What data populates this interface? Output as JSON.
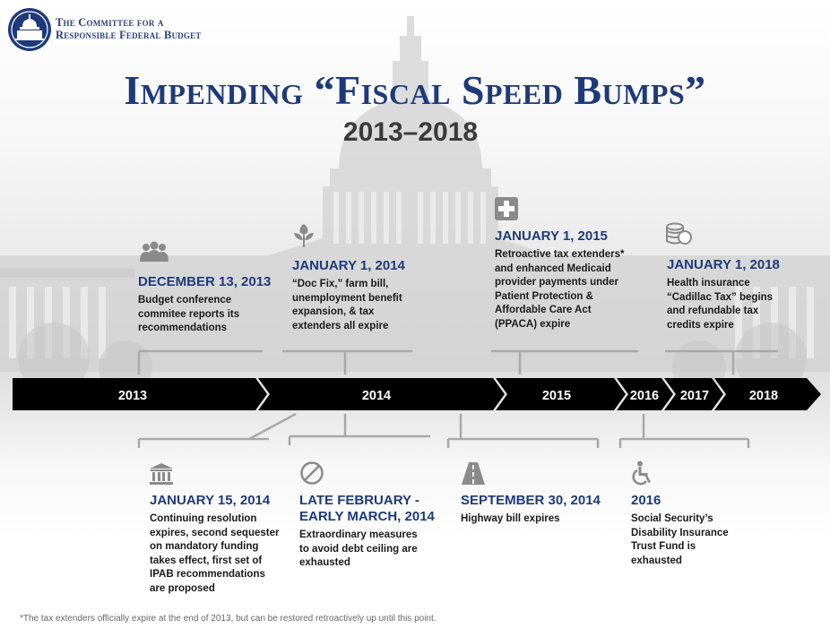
{
  "header": {
    "org_line1": "The Committee for a",
    "org_line2": "Responsible Federal Budget",
    "title": "Impending “Fiscal Speed Bumps”",
    "subtitle": "2013–2018"
  },
  "timeline": {
    "years": [
      {
        "label": "2013"
      },
      {
        "label": "2014"
      },
      {
        "label": "2015"
      },
      {
        "label": "2016"
      },
      {
        "label": "2017"
      },
      {
        "label": "2018"
      }
    ]
  },
  "events_top": [
    {
      "icon": "people-group-icon",
      "date": "DECEMBER 13, 2013",
      "text": [
        "Budget conference",
        "commitee reports its",
        "recommendations"
      ]
    },
    {
      "icon": "plant-icon",
      "date": "JANUARY 1, 2014",
      "text": [
        "“Doc Fix,” farm bill,",
        "unemployment benefit",
        "expansion, & tax",
        "extenders all expire"
      ]
    },
    {
      "icon": "medical-cross-icon",
      "date": "JANUARY 1, 2015",
      "text": [
        "Retroactive tax extenders*",
        "and enhanced Medicaid",
        "provider payments under",
        "Patient Protection &",
        "Affordable Care Act",
        "(PPACA) expire"
      ]
    },
    {
      "icon": "coins-icon",
      "date": "JANUARY 1, 2018",
      "text": [
        "Health insurance",
        "“Cadillac Tax” begins",
        "and refundable tax",
        "credits expire"
      ]
    }
  ],
  "events_bottom": [
    {
      "icon": "government-building-icon",
      "date": "JANUARY 15, 2014",
      "text": [
        "Continuing resolution",
        "expires, second sequester",
        "on mandatory funding",
        "takes effect, first set of",
        "IPAB recommendations",
        "are proposed"
      ]
    },
    {
      "icon": "prohibited-icon",
      "date_lines": [
        "LATE FEBRUARY -",
        "EARLY MARCH, 2014"
      ],
      "text": [
        "Extraordinary measures",
        "to avoid debt ceiling are",
        "exhausted"
      ]
    },
    {
      "icon": "highway-icon",
      "date": "SEPTEMBER 30, 2014",
      "text": [
        "Highway bill expires"
      ]
    },
    {
      "icon": "wheelchair-icon",
      "date": "2016",
      "text": [
        "Social Security’s",
        "Disability Insurance",
        "Trust Fund is",
        "exhausted"
      ]
    }
  ],
  "footnote": "*The tax extenders officially expire at the end of 2013, but can be restored retroactively up until this point.",
  "colors": {
    "navy": "#1e3a7b",
    "arrow": "#000000",
    "connector": "#a8a8a8",
    "icon_gray": "#8a8a8a"
  }
}
